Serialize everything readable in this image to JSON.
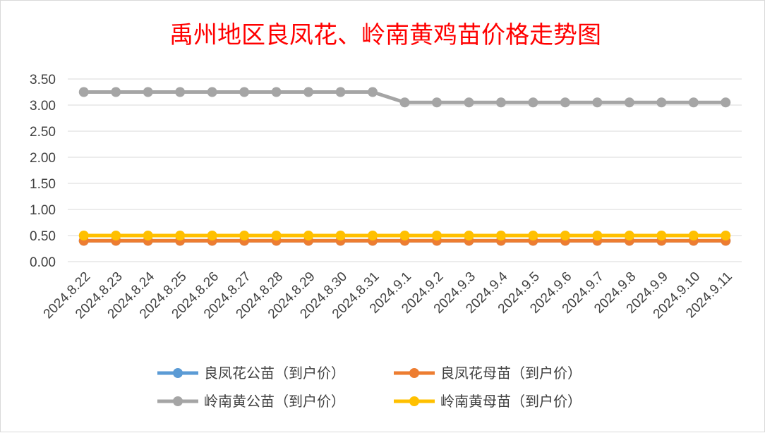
{
  "chart_data": {
    "type": "line",
    "title": "禹州地区良凤花、岭南黄鸡苗价格走势图",
    "xlabel": "",
    "ylabel": "",
    "ylim": [
      0,
      3.5
    ],
    "yticks": [
      "0.00",
      "0.50",
      "1.00",
      "1.50",
      "2.00",
      "2.50",
      "3.00",
      "3.50"
    ],
    "grid": true,
    "legend_position": "bottom",
    "categories": [
      "2024.8.22",
      "2024.8.23",
      "2024.8.24",
      "2024.8.25",
      "2024.8.26",
      "2024.8.27",
      "2024.8.28",
      "2024.8.29",
      "2024.8.30",
      "2024.8.31",
      "2024.9.1",
      "2024.9.2",
      "2024.9.3",
      "2024.9.4",
      "2024.9.5",
      "2024.9.6",
      "2024.9.7",
      "2024.9.8",
      "2024.9.9",
      "2024.9.10",
      "2024.9.11"
    ],
    "series": [
      {
        "name": "良凤花公苗（到户价）",
        "color": "#5b9bd5",
        "values": [
          0.4,
          0.4,
          0.4,
          0.4,
          0.4,
          0.4,
          0.4,
          0.4,
          0.4,
          0.4,
          0.4,
          0.4,
          0.4,
          0.4,
          0.4,
          0.4,
          0.4,
          0.4,
          0.4,
          0.4,
          0.4
        ]
      },
      {
        "name": "良凤花母苗（到户价）",
        "color": "#ed7d31",
        "values": [
          0.4,
          0.4,
          0.4,
          0.4,
          0.4,
          0.4,
          0.4,
          0.4,
          0.4,
          0.4,
          0.4,
          0.4,
          0.4,
          0.4,
          0.4,
          0.4,
          0.4,
          0.4,
          0.4,
          0.4,
          0.4
        ]
      },
      {
        "name": "岭南黄公苗（到户价）",
        "color": "#a5a5a5",
        "values": [
          3.25,
          3.25,
          3.25,
          3.25,
          3.25,
          3.25,
          3.25,
          3.25,
          3.25,
          3.25,
          3.05,
          3.05,
          3.05,
          3.05,
          3.05,
          3.05,
          3.05,
          3.05,
          3.05,
          3.05,
          3.05
        ]
      },
      {
        "name": "岭南黄母苗（到户价）",
        "color": "#ffc000",
        "values": [
          0.5,
          0.5,
          0.5,
          0.5,
          0.5,
          0.5,
          0.5,
          0.5,
          0.5,
          0.5,
          0.5,
          0.5,
          0.5,
          0.5,
          0.5,
          0.5,
          0.5,
          0.5,
          0.5,
          0.5,
          0.5
        ]
      }
    ]
  }
}
